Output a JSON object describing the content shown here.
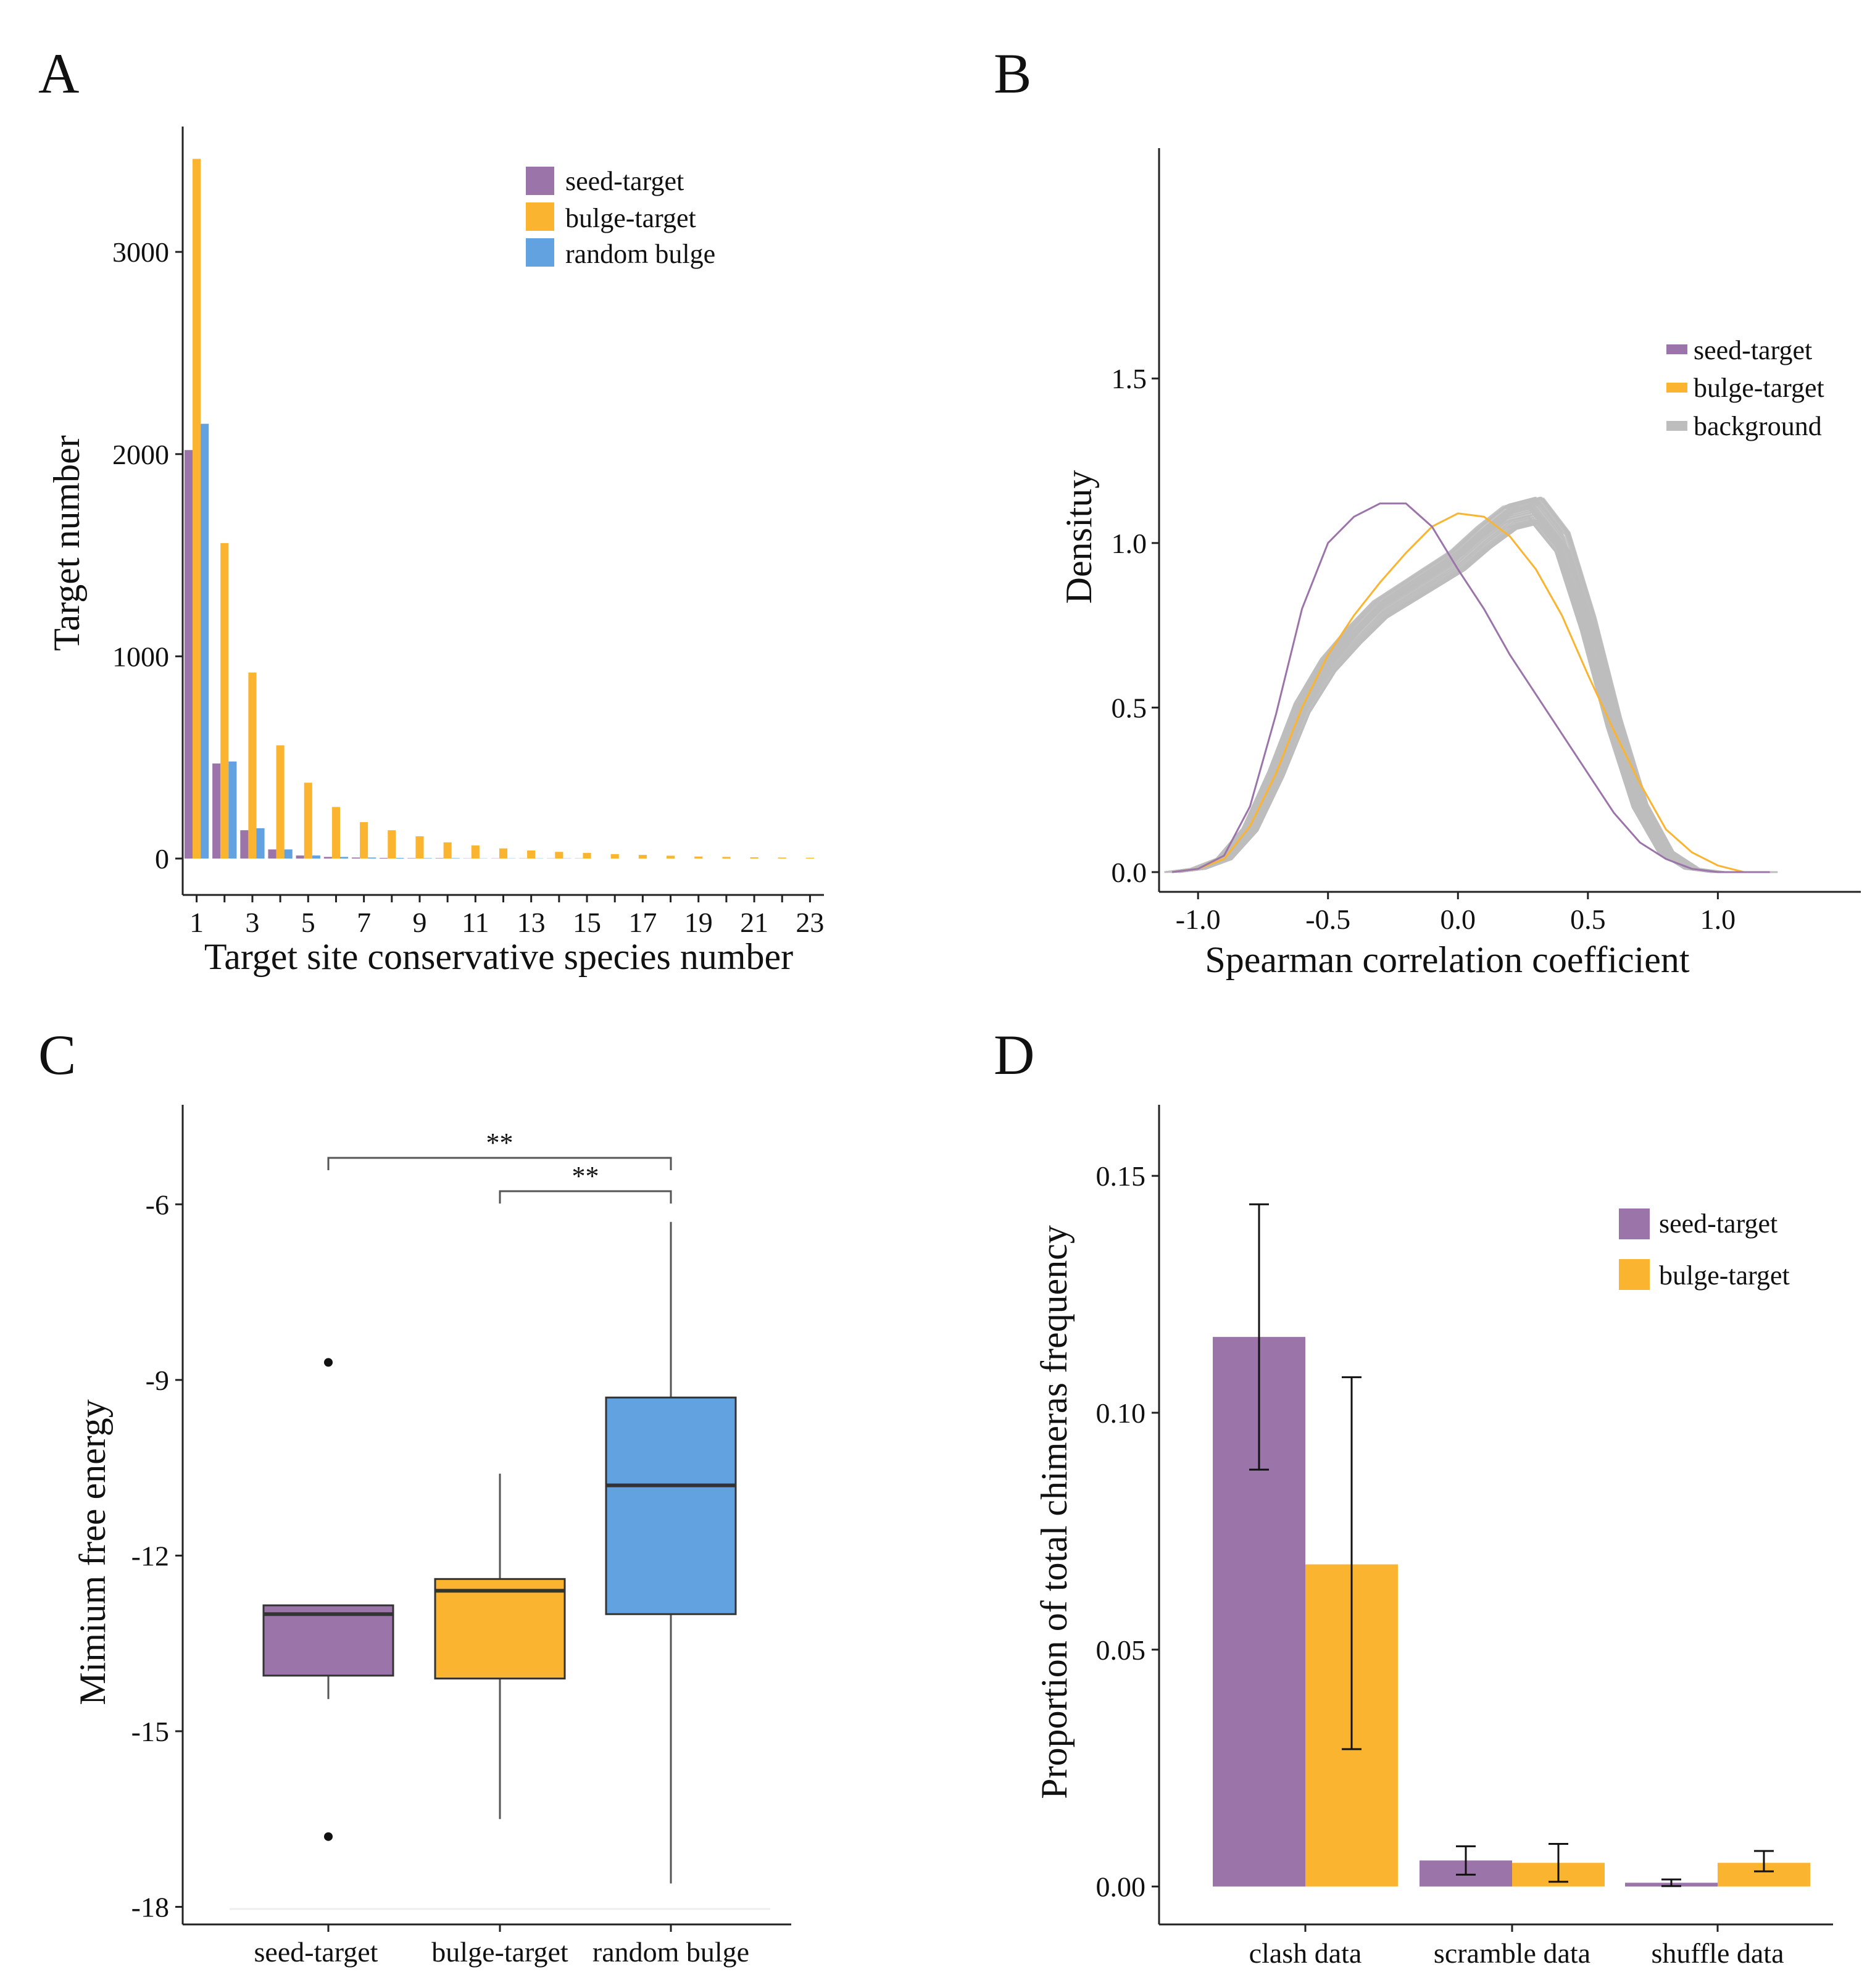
{
  "colors": {
    "seed": "#9b74a9",
    "bulge": "#fbb42f",
    "random": "#62a2e0",
    "background": "#bdbdbd",
    "axis": "#222222"
  },
  "chart_data": [
    {
      "panel": "A",
      "type": "bar",
      "xlabel": "Target site conservative species number",
      "ylabel": "Target number",
      "x": [
        1,
        2,
        3,
        4,
        5,
        6,
        7,
        8,
        9,
        10,
        11,
        12,
        13,
        14,
        15,
        16,
        17,
        18,
        19,
        20,
        21,
        22,
        23
      ],
      "xticks": [
        "1",
        "3",
        "5",
        "7",
        "9",
        "11",
        "13",
        "15",
        "17",
        "19",
        "21",
        "23"
      ],
      "ylim": [
        -180,
        3620
      ],
      "yticks": [
        0,
        1000,
        2000,
        3000
      ],
      "ytick_labels": [
        "0",
        "1000",
        "2000",
        "3000"
      ],
      "legend": [
        "seed-target",
        "bulge-target",
        "random bulge"
      ],
      "legend_position": "top-right",
      "series": [
        {
          "name": "seed-target",
          "values": [
            2020,
            470,
            140,
            45,
            15,
            8,
            5,
            3,
            2,
            2,
            1,
            1,
            1,
            1,
            1,
            0,
            0,
            0,
            0,
            0,
            0,
            0,
            0
          ]
        },
        {
          "name": "bulge-target",
          "values": [
            3460,
            1560,
            920,
            560,
            375,
            255,
            180,
            140,
            110,
            80,
            65,
            50,
            40,
            33,
            28,
            22,
            18,
            14,
            10,
            8,
            6,
            5,
            4
          ]
        },
        {
          "name": "random bulge",
          "values": [
            2150,
            480,
            150,
            45,
            15,
            8,
            5,
            3,
            2,
            2,
            1,
            1,
            1,
            1,
            0,
            0,
            0,
            0,
            0,
            0,
            0,
            0,
            0
          ]
        }
      ]
    },
    {
      "panel": "B",
      "type": "line",
      "xlabel": "Spearman correlation coefficient",
      "ylabel": "Densituy",
      "xlim": [
        -1.15,
        1.55
      ],
      "ylim": [
        -0.06,
        2.2
      ],
      "xticks": [
        -1.0,
        -0.5,
        0.0,
        0.5,
        1.0
      ],
      "xtick_labels": [
        "-1.0",
        "-0.5",
        "0.0",
        "0.5",
        "1.0"
      ],
      "yticks": [
        0.0,
        0.5,
        1.0,
        1.5
      ],
      "ytick_labels": [
        "0.0",
        "0.5",
        "1.0",
        "1.5"
      ],
      "legend": [
        "seed-target",
        "bulge-target",
        "background"
      ],
      "legend_position": "top-right",
      "series": [
        {
          "name": "seed-target",
          "x": [
            -1.1,
            -1.0,
            -0.9,
            -0.8,
            -0.7,
            -0.6,
            -0.5,
            -0.4,
            -0.3,
            -0.2,
            -0.1,
            0.0,
            0.1,
            0.2,
            0.3,
            0.4,
            0.5,
            0.6,
            0.7,
            0.8,
            0.9,
            1.0,
            1.1,
            1.2
          ],
          "y": [
            0.0,
            0.01,
            0.05,
            0.2,
            0.48,
            0.8,
            1.0,
            1.08,
            1.12,
            1.12,
            1.05,
            0.92,
            0.8,
            0.66,
            0.54,
            0.42,
            0.3,
            0.18,
            0.09,
            0.04,
            0.01,
            0.0,
            0.0,
            0.0
          ]
        },
        {
          "name": "bulge-target",
          "x": [
            -1.1,
            -1.0,
            -0.9,
            -0.8,
            -0.7,
            -0.6,
            -0.5,
            -0.4,
            -0.3,
            -0.2,
            -0.1,
            0.0,
            0.1,
            0.2,
            0.3,
            0.4,
            0.5,
            0.6,
            0.7,
            0.8,
            0.9,
            1.0,
            1.1,
            1.2
          ],
          "y": [
            0.0,
            0.01,
            0.04,
            0.14,
            0.3,
            0.5,
            0.66,
            0.78,
            0.88,
            0.97,
            1.05,
            1.09,
            1.08,
            1.02,
            0.92,
            0.78,
            0.6,
            0.43,
            0.27,
            0.13,
            0.06,
            0.02,
            0.0,
            0.0
          ]
        },
        {
          "name": "background",
          "x": [
            -1.1,
            -1.0,
            -0.9,
            -0.8,
            -0.7,
            -0.6,
            -0.5,
            -0.4,
            -0.3,
            -0.2,
            -0.1,
            0.0,
            0.1,
            0.2,
            0.3,
            0.4,
            0.5,
            0.6,
            0.7,
            0.8,
            0.9,
            1.0,
            1.1,
            1.2
          ],
          "y": [
            0.0,
            0.01,
            0.04,
            0.13,
            0.3,
            0.5,
            0.63,
            0.72,
            0.8,
            0.85,
            0.9,
            0.95,
            1.02,
            1.08,
            1.1,
            1.0,
            0.75,
            0.45,
            0.2,
            0.06,
            0.01,
            0.0,
            0.0,
            0.0
          ],
          "replicates": 100
        }
      ]
    },
    {
      "panel": "C",
      "type": "box",
      "xlabel": "",
      "ylabel": "Mimium free energy",
      "ylim": [
        -18.3,
        -4.3
      ],
      "yticks": [
        -18,
        -15,
        -12,
        -9,
        -6
      ],
      "ytick_labels": [
        "-18",
        "-15",
        "-12",
        "-9",
        "-6"
      ],
      "categories": [
        "seed-target",
        "bulge-target",
        "random bulge"
      ],
      "boxes": [
        {
          "name": "seed-target",
          "q1": -14.05,
          "median": -13.0,
          "q3": -12.85,
          "whisker_low": -14.45,
          "whisker_high": -12.85,
          "outliers": [
            -8.7,
            -16.8
          ]
        },
        {
          "name": "bulge-target",
          "q1": -14.1,
          "median": -12.6,
          "q3": -12.4,
          "whisker_low": -16.5,
          "whisker_high": -10.6,
          "outliers": []
        },
        {
          "name": "random bulge",
          "q1": -13.0,
          "median": -10.8,
          "q3": -9.3,
          "whisker_low": -17.6,
          "whisker_high": -6.3,
          "outliers": []
        }
      ],
      "significance": [
        {
          "from": "seed-target",
          "to": "random bulge",
          "label": "**"
        },
        {
          "from": "bulge-target",
          "to": "random bulge",
          "label": "**"
        }
      ]
    },
    {
      "panel": "D",
      "type": "bar",
      "xlabel": "",
      "ylabel": "Proportion of total chimeras frequency",
      "ylim": [
        -0.008,
        0.165
      ],
      "yticks": [
        0.0,
        0.05,
        0.1,
        0.15
      ],
      "ytick_labels": [
        "0.00",
        "0.05",
        "0.10",
        "0.15"
      ],
      "categories": [
        "clash data",
        "scramble data",
        "shuffle data"
      ],
      "legend": [
        "seed-target",
        "bulge-target"
      ],
      "legend_position": "top-right",
      "series": [
        {
          "name": "seed-target",
          "values": [
            0.116,
            0.0055,
            0.0008
          ],
          "err_low": [
            0.088,
            0.0025,
            0.0001
          ],
          "err_high": [
            0.144,
            0.0085,
            0.0015
          ]
        },
        {
          "name": "bulge-target",
          "values": [
            0.068,
            0.005,
            0.005
          ],
          "err_low": [
            0.029,
            0.001,
            0.0032
          ],
          "err_high": [
            0.1075,
            0.009,
            0.0075
          ]
        }
      ]
    }
  ]
}
